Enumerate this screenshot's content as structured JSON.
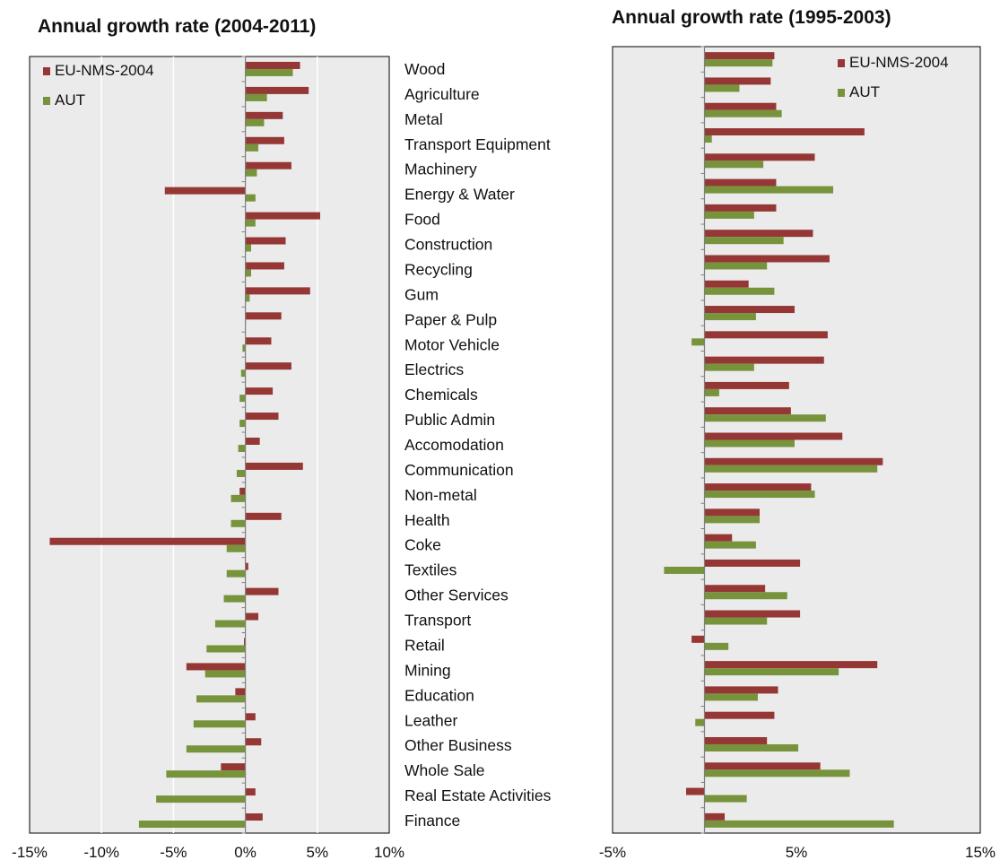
{
  "chart_data": [
    {
      "type": "bar",
      "orientation": "horizontal",
      "title": "Annual growth rate (2004-2011)",
      "xlim": [
        -15,
        10
      ],
      "xticks": [
        "-15%",
        "-10%",
        "-5%",
        "0%",
        "5%",
        "10%"
      ],
      "xtick_values": [
        -15,
        -10,
        -5,
        0,
        5,
        10
      ],
      "grid": true,
      "legend_placement": "top-left",
      "categories": [
        "Wood",
        "Agriculture",
        "Metal",
        "Transport Equipment",
        "Machinery",
        "Energy & Water",
        "Food",
        "Construction",
        "Recycling",
        "Gum",
        "Paper & Pulp",
        "Motor Vehicle",
        "Electrics",
        "Chemicals",
        "Public Admin",
        "Accomodation",
        "Communication",
        "Non-metal",
        "Health",
        "Coke",
        "Textiles",
        "Other Services",
        "Transport",
        "Retail",
        "Mining",
        "Education",
        "Leather",
        "Other Business",
        "Whole Sale",
        "Real Estate Activities",
        "Finance"
      ],
      "series": [
        {
          "name": "EU-NMS-2004",
          "color": "#953735",
          "values": [
            3.8,
            4.4,
            2.6,
            2.7,
            3.2,
            -5.6,
            5.2,
            2.8,
            2.7,
            4.5,
            2.5,
            1.8,
            3.2,
            1.9,
            2.3,
            1.0,
            4.0,
            -0.4,
            2.5,
            -13.6,
            0.2,
            2.3,
            0.9,
            -0.1,
            -4.1,
            -0.7,
            0.7,
            1.1,
            -1.7,
            0.7,
            1.2
          ]
        },
        {
          "name": "AUT",
          "color": "#77933c",
          "values": [
            3.3,
            1.5,
            1.3,
            0.9,
            0.8,
            0.7,
            0.7,
            0.4,
            0.4,
            0.3,
            0.0,
            -0.2,
            -0.3,
            -0.4,
            -0.4,
            -0.5,
            -0.6,
            -1.0,
            -1.0,
            -1.3,
            -1.3,
            -1.5,
            -2.1,
            -2.7,
            -2.8,
            -3.4,
            -3.6,
            -4.1,
            -5.5,
            -6.2,
            -7.4
          ]
        }
      ]
    },
    {
      "type": "bar",
      "orientation": "horizontal",
      "title": "Annual growth rate (1995-2003)",
      "xlim": [
        -5,
        15
      ],
      "xticks": [
        "-5%",
        "5%",
        "15%"
      ],
      "xtick_values": [
        -5,
        5,
        15
      ],
      "grid": false,
      "legend_placement": "top-right",
      "categories": [
        "Wood",
        "Agriculture",
        "Metal",
        "Transport Equipment",
        "Machinery",
        "Energy & Water",
        "Food",
        "Construction",
        "Recycling",
        "Gum",
        "Paper & Pulp",
        "Motor Vehicle",
        "Electrics",
        "Chemicals",
        "Public Admin",
        "Accomodation",
        "Communication",
        "Non-metal",
        "Health",
        "Coke",
        "Textiles",
        "Other Services",
        "Transport",
        "Retail",
        "Mining",
        "Education",
        "Leather",
        "Other Business",
        "Whole Sale",
        "Real Estate Activities",
        "Finance"
      ],
      "series": [
        {
          "name": "EU-NMS-2004",
          "color": "#953735",
          "values": [
            3.8,
            3.6,
            3.9,
            8.7,
            6.0,
            3.9,
            3.9,
            5.9,
            6.8,
            2.4,
            4.9,
            6.7,
            6.5,
            4.6,
            4.7,
            7.5,
            9.7,
            5.8,
            3.0,
            1.5,
            5.2,
            3.3,
            5.2,
            -0.7,
            9.4,
            4.0,
            3.8,
            3.4,
            6.3,
            -1.0,
            1.1
          ]
        },
        {
          "name": "AUT",
          "color": "#77933c",
          "values": [
            3.7,
            1.9,
            4.2,
            0.4,
            3.2,
            7.0,
            2.7,
            4.3,
            3.4,
            3.8,
            2.8,
            -0.7,
            2.7,
            0.8,
            6.6,
            4.9,
            9.4,
            6.0,
            3.0,
            2.8,
            -2.2,
            4.5,
            3.4,
            1.3,
            7.3,
            2.9,
            -0.5,
            5.1,
            7.9,
            2.3,
            10.3
          ]
        }
      ]
    }
  ]
}
